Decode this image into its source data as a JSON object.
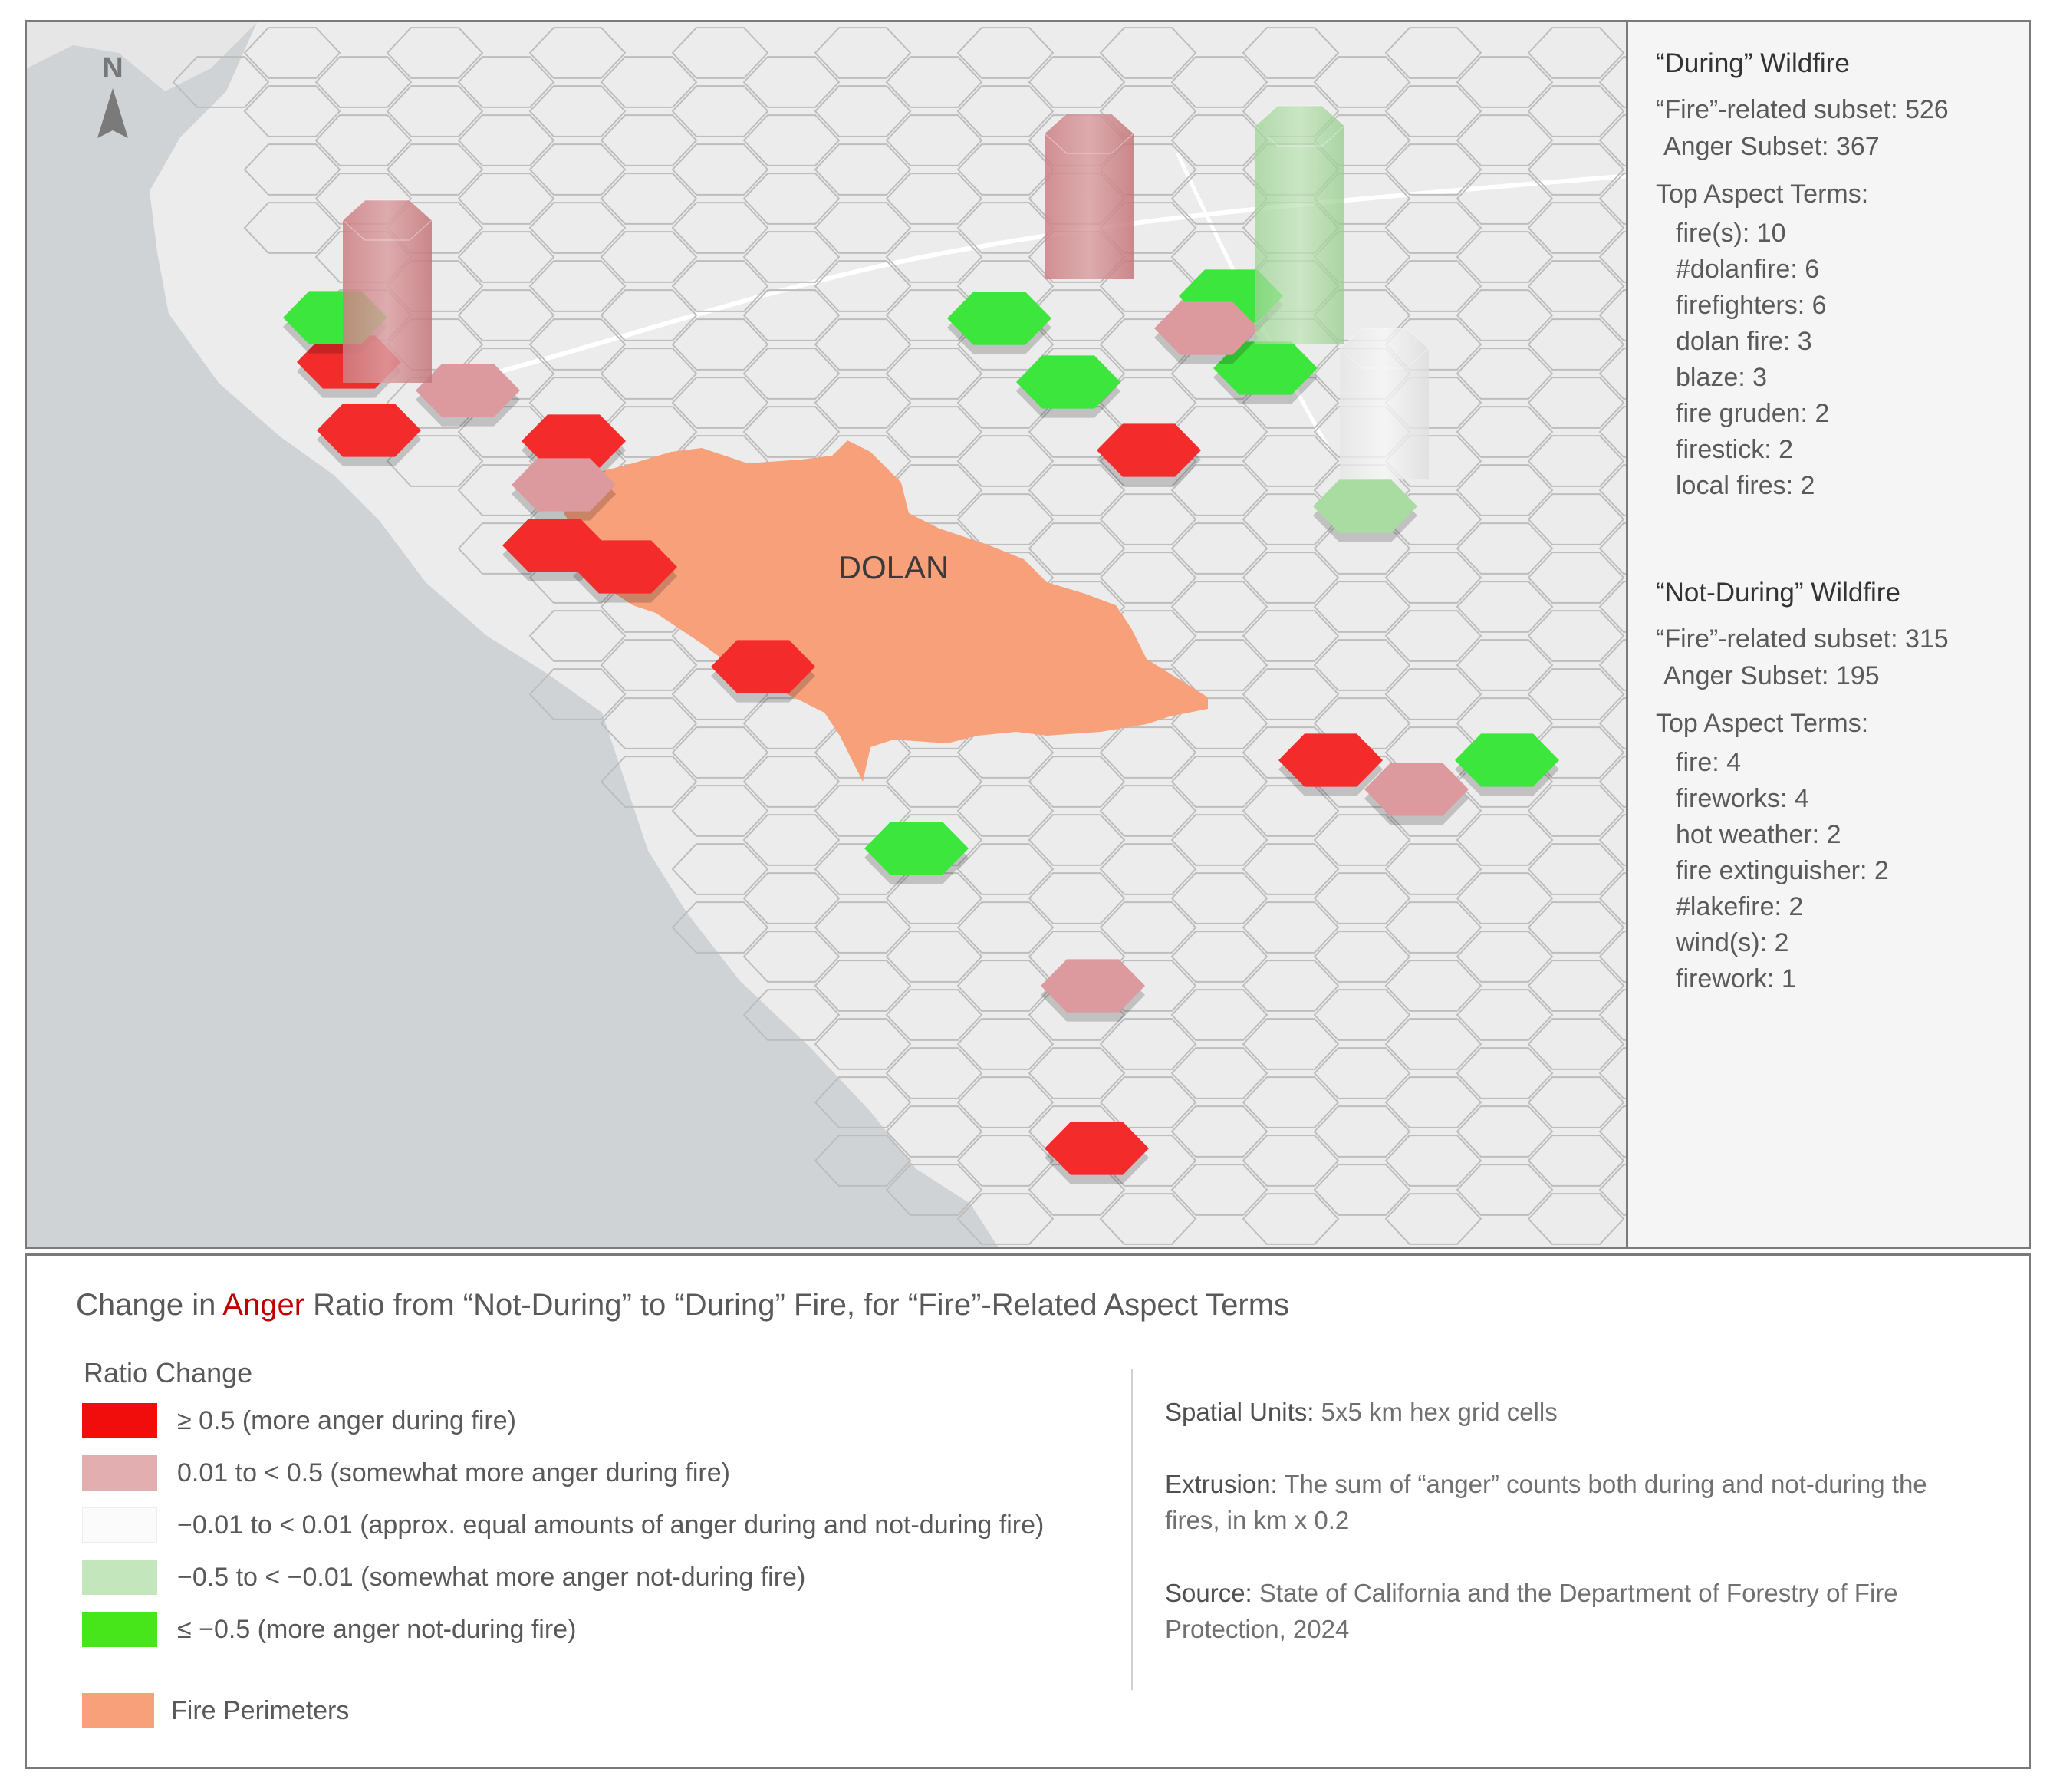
{
  "map": {
    "north_label": "N",
    "fire_name": "DOLAN",
    "colors": {
      "sea": "#cfd3d5",
      "land": "#ececec",
      "fire": "#f7a07a",
      "more_anger": "#f42b2b",
      "somewhat_more": "#dd9a9e",
      "approx_equal": "#f4f4f4",
      "somewhat_less": "#a8dca0",
      "less_anger": "#3de63d"
    }
  },
  "side_panel": {
    "during": {
      "title": "“During” Wildfire",
      "fire_subset": "“Fire”-related subset: 526",
      "anger_subset": "Anger Subset: 367",
      "terms_heading": "Top Aspect Terms:",
      "terms": [
        "fire(s): 10",
        "#dolanfire: 6",
        "firefighters: 6",
        "dolan fire: 3",
        "blaze: 3",
        "fire gruden: 2",
        "firestick: 2",
        "local fires: 2"
      ]
    },
    "not_during": {
      "title": "“Not-During” Wildfire",
      "fire_subset": "“Fire”-related subset: 315",
      "anger_subset": "Anger Subset: 195",
      "terms_heading": "Top Aspect Terms:",
      "terms": [
        "fire: 4",
        "fireworks: 4",
        "hot weather: 2",
        "fire extinguisher: 2",
        "#lakefire: 2",
        "wind(s): 2",
        "firework: 1"
      ]
    }
  },
  "legend": {
    "title_before": "Change in ",
    "title_highlight": "Anger",
    "title_after": " Ratio from “Not-During” to “During” Fire, for “Fire”-Related Aspect Terms",
    "ratio_heading": "Ratio Change",
    "items": [
      {
        "label": "≥ 0.5 (more anger during fire)",
        "color": "#f20d0d"
      },
      {
        "label": "0.01 to < 0.5 (somewhat more anger during fire)",
        "color": "#e3aeb0"
      },
      {
        "label": "−0.01 to < 0.01 (approx. equal amounts of anger during and not-during fire)",
        "color": "#fbfbfb"
      },
      {
        "label": "−0.5 to < −0.01 (somewhat more anger not-during fire)",
        "color": "#c3e6bd"
      },
      {
        "label": "≤ −0.5 (more anger not-during fire)",
        "color": "#47e61a"
      }
    ],
    "fire_item": {
      "label": "Fire Perimeters",
      "color": "#f7a07a"
    },
    "notes": {
      "spatial_key": "Spatial Units:",
      "spatial_value": " 5x5 km hex grid cells",
      "extrusion_key": "Extrusion:",
      "extrusion_value": " The sum of “anger” counts both during and not-during the fires, in km x 0.2",
      "source_key": "Source:",
      "source_value": " State of California and the Department of Forestry of Fire Protection, 2024"
    }
  }
}
